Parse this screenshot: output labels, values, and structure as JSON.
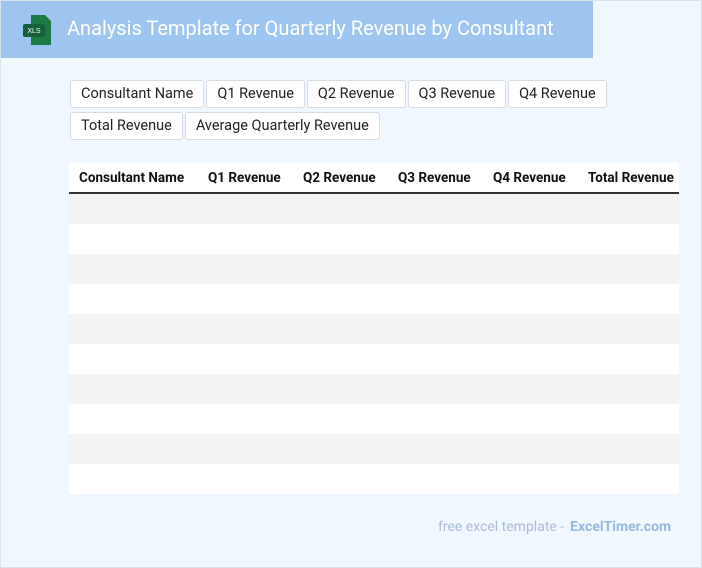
{
  "header": {
    "icon": "XLS",
    "title": "Analysis Template for Quarterly Revenue by Consultant"
  },
  "fields": [
    "Consultant Name",
    "Q1 Revenue",
    "Q2 Revenue",
    "Q3 Revenue",
    "Q4 Revenue",
    "Total Revenue",
    "Average Quarterly Revenue"
  ],
  "table": {
    "columns": [
      "Consultant Name",
      "Q1 Revenue",
      "Q2 Revenue",
      "Q3 Revenue",
      "Q4 Revenue",
      "Total Revenue"
    ]
  },
  "footer": {
    "text": "free excel template -",
    "link": "ExcelTimer.com"
  }
}
